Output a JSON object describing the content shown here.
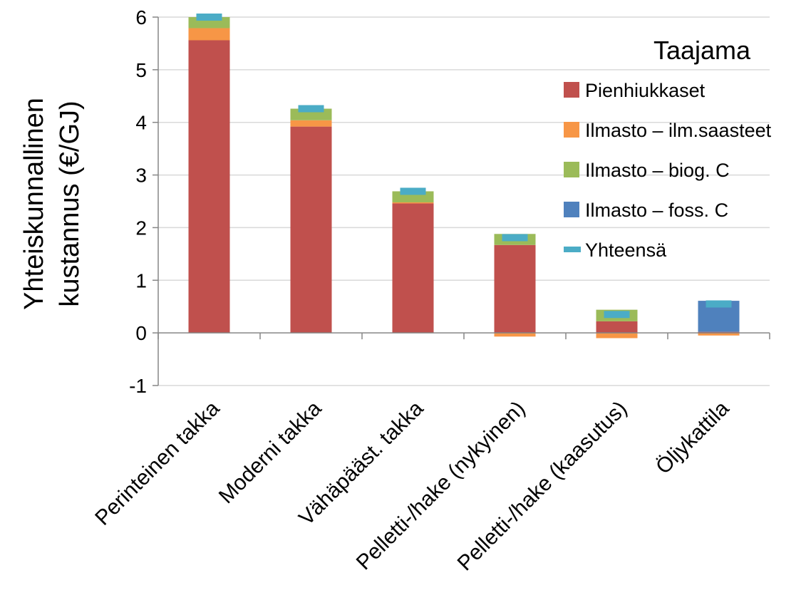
{
  "chart_data": {
    "type": "bar",
    "stacked": true,
    "title": "",
    "xlabel": "",
    "ylabel": [
      "Yhteiskunnallinen",
      "kustannus (€/GJ)"
    ],
    "ylim": [
      -1,
      6
    ],
    "yticks": [
      "-1",
      "0",
      "1",
      "2",
      "3",
      "4",
      "5",
      "6"
    ],
    "grid": true,
    "legend": {
      "title": "Taajama",
      "placement": "top-right"
    },
    "categories": [
      "Perinteinen takka",
      "Moderni takka",
      "Vähäpääst. takka",
      "Pelletti-/hake (nykyinen)",
      "Pelletti-/hake (kaasutus)",
      "Öljykattila"
    ],
    "series": [
      {
        "name": "Pienhiukkaset",
        "color": "#c0504d",
        "values": [
          5.56,
          3.92,
          2.46,
          1.67,
          0.22,
          0.02
        ]
      },
      {
        "name": "Ilmasto – ilm.saasteet",
        "color": "#f79646",
        "values": [
          0.23,
          0.12,
          0.02,
          -0.07,
          -0.1,
          -0.05
        ]
      },
      {
        "name": "Ilmasto – biog. C",
        "color": "#9bbb59",
        "values": [
          0.21,
          0.22,
          0.21,
          0.21,
          0.22,
          0.0
        ]
      },
      {
        "name": "Ilmasto – foss. C",
        "color": "#4f81bd",
        "values": [
          0.0,
          0.0,
          0.0,
          0.0,
          0.0,
          0.59
        ]
      }
    ],
    "total": {
      "name": "Yhteensä",
      "color": "#4bacc6",
      "values": [
        6.0,
        4.26,
        2.69,
        1.81,
        0.35,
        0.55
      ]
    }
  }
}
